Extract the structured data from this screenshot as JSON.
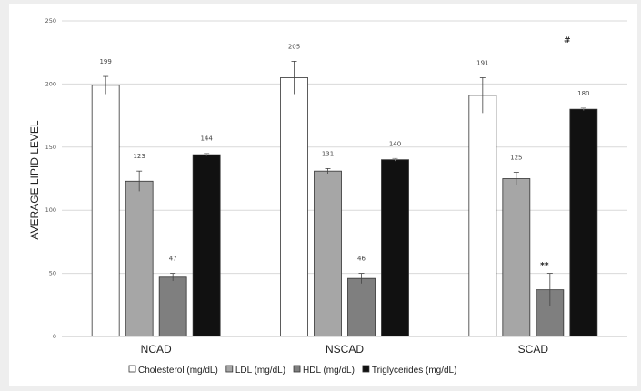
{
  "chart_data": {
    "type": "bar",
    "title": "",
    "xlabel": "",
    "ylabel": "AVERAGE LIPID LEVEL",
    "ylim": [
      0,
      250
    ],
    "yticks": [
      0,
      50,
      100,
      150,
      200,
      250
    ],
    "grid": true,
    "legend_position": "bottom",
    "categories": [
      "NCAD",
      "NSCAD",
      "SCAD"
    ],
    "series": [
      {
        "name": "Cholesterol (mg/dL)",
        "color": "#ffffff",
        "values": [
          199,
          205,
          191
        ],
        "errors": [
          7,
          13,
          14
        ]
      },
      {
        "name": "LDL (mg/dL)",
        "color": "#a6a6a6",
        "values": [
          123,
          131,
          125
        ],
        "errors": [
          8,
          2,
          5
        ]
      },
      {
        "name": "HDL (mg/dL)",
        "color": "#7f7f7f",
        "values": [
          47,
          46,
          37
        ],
        "errors": [
          3,
          4,
          13
        ]
      },
      {
        "name": "Triglycerides (mg/dL)",
        "color": "#111111",
        "values": [
          144,
          140,
          180
        ],
        "errors": [
          1,
          1,
          1
        ]
      }
    ],
    "annotations": [
      {
        "category": "SCAD",
        "series": "HDL (mg/dL)",
        "text": "**"
      },
      {
        "category": "SCAD",
        "series": "Triglycerides (mg/dL)",
        "text": "#"
      }
    ]
  }
}
